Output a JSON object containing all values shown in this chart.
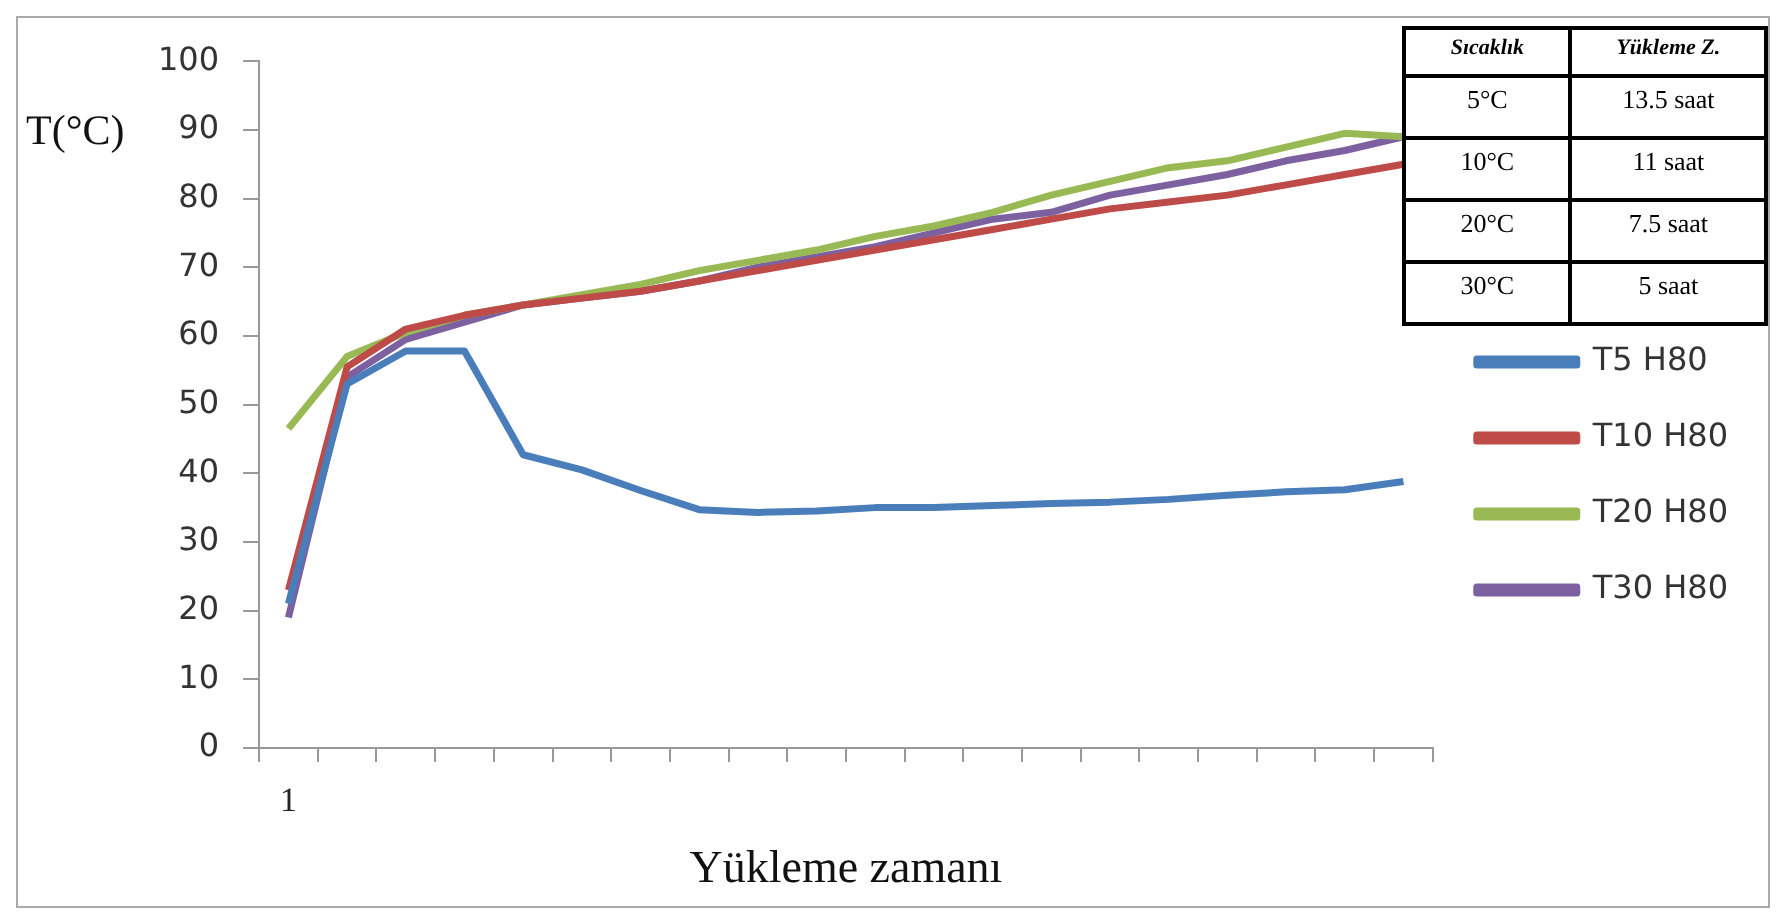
{
  "chart_data": {
    "type": "line",
    "xlabel": "Yükleme zamanı",
    "ylabel": "T(°C)",
    "categories": [
      "1",
      null,
      null,
      null,
      null,
      null,
      null,
      null,
      null,
      null,
      null,
      null,
      null,
      null,
      null,
      null,
      null,
      null,
      null,
      null
    ],
    "ylim": [
      0,
      100
    ],
    "yticks": [
      0,
      10,
      20,
      30,
      40,
      50,
      60,
      70,
      80,
      90,
      100
    ],
    "legend": "right",
    "marker": "none",
    "line_style": "solid",
    "series": [
      {
        "name": "T5 H80",
        "color": "#4a7ebb",
        "values": [
          21,
          53,
          57.8,
          57.8,
          42.7,
          40.5,
          37.5,
          34.7,
          34.3,
          34.5,
          35,
          35,
          35.3,
          35.6,
          35.8,
          36.2,
          36.8,
          37.3,
          37.6,
          38.8
        ]
      },
      {
        "name": "T10 H80",
        "color": "#be4b48",
        "values": [
          23,
          55.5,
          61,
          63,
          64.5,
          65.5,
          66.5,
          68,
          69.5,
          71,
          72.5,
          74,
          75.5,
          77,
          78.5,
          79.5,
          80.5,
          82,
          83.5,
          85
        ]
      },
      {
        "name": "T20 H80",
        "color": "#98b954",
        "values": [
          46.5,
          57,
          60.5,
          63,
          64.5,
          66,
          67.5,
          69.5,
          71,
          72.5,
          74.5,
          76,
          78,
          80.5,
          82.5,
          84.5,
          85.5,
          87.5,
          89.5,
          89
        ]
      },
      {
        "name": "T30 H80",
        "color": "#7d60a0",
        "values": [
          19,
          54,
          59.5,
          62,
          64.5,
          65.5,
          66.5,
          68,
          70,
          71.5,
          73,
          75,
          77,
          78,
          80.5,
          82,
          83.5,
          85.5,
          87,
          89
        ]
      }
    ],
    "annotations": [
      "Sıcaklık",
      "Yükleme Z.",
      "5°C",
      "13.5 saat",
      "10°C",
      "11 saat",
      "20°C",
      "7.5 saat",
      "30°C",
      "5 saat"
    ]
  }
}
